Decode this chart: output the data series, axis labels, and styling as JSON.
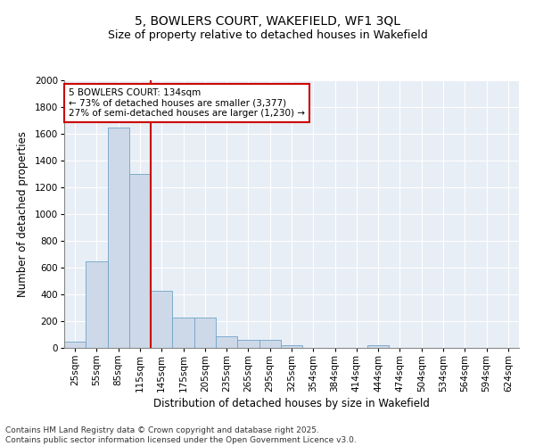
{
  "title_line1": "5, BOWLERS COURT, WAKEFIELD, WF1 3QL",
  "title_line2": "Size of property relative to detached houses in Wakefield",
  "xlabel": "Distribution of detached houses by size in Wakefield",
  "ylabel": "Number of detached properties",
  "categories": [
    "25sqm",
    "55sqm",
    "85sqm",
    "115sqm",
    "145sqm",
    "175sqm",
    "205sqm",
    "235sqm",
    "265sqm",
    "295sqm",
    "325sqm",
    "354sqm",
    "384sqm",
    "414sqm",
    "444sqm",
    "474sqm",
    "504sqm",
    "534sqm",
    "564sqm",
    "594sqm",
    "624sqm"
  ],
  "values": [
    50,
    650,
    1650,
    1300,
    430,
    230,
    230,
    90,
    60,
    60,
    20,
    0,
    0,
    0,
    20,
    0,
    0,
    0,
    0,
    0,
    0
  ],
  "bar_color": "#cdd9e8",
  "bar_edge_color": "#6fa3c8",
  "vline_x": 3.5,
  "vline_color": "#cc0000",
  "annotation_text": "5 BOWLERS COURT: 134sqm\n← 73% of detached houses are smaller (3,377)\n27% of semi-detached houses are larger (1,230) →",
  "annotation_box_color": "#ffffff",
  "annotation_box_edge_color": "#cc0000",
  "ylim": [
    0,
    2000
  ],
  "yticks": [
    0,
    200,
    400,
    600,
    800,
    1000,
    1200,
    1400,
    1600,
    1800,
    2000
  ],
  "background_color": "#e8eef5",
  "footer_text": "Contains HM Land Registry data © Crown copyright and database right 2025.\nContains public sector information licensed under the Open Government Licence v3.0.",
  "title_fontsize": 10,
  "subtitle_fontsize": 9,
  "tick_fontsize": 7.5,
  "label_fontsize": 8.5,
  "footer_fontsize": 6.5,
  "annot_fontsize": 7.5
}
